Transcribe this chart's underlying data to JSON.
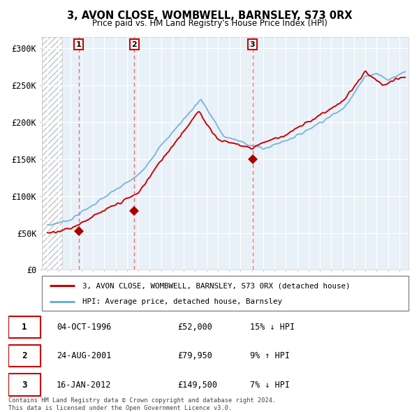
{
  "title": "3, AVON CLOSE, WOMBWELL, BARNSLEY, S73 0RX",
  "subtitle": "Price paid vs. HM Land Registry's House Price Index (HPI)",
  "ylabel_ticks": [
    "£0",
    "£50K",
    "£100K",
    "£150K",
    "£200K",
    "£250K",
    "£300K"
  ],
  "ytick_values": [
    0,
    50000,
    100000,
    150000,
    200000,
    250000,
    300000
  ],
  "ylim": [
    0,
    315000
  ],
  "xlim_start": 1993.5,
  "xlim_end": 2025.8,
  "hpi_color": "#6baed6",
  "price_color": "#cc0000",
  "sale_marker_color": "#aa0000",
  "vline_color": "#e87070",
  "label_border": "#cc0000",
  "sale1_x": 1996.75,
  "sale1_y": 52000,
  "sale2_x": 2001.65,
  "sale2_y": 79950,
  "sale3_x": 2012.05,
  "sale3_y": 149500,
  "legend_line1": "3, AVON CLOSE, WOMBWELL, BARNSLEY, S73 0RX (detached house)",
  "legend_line2": "HPI: Average price, detached house, Barnsley",
  "table_rows": [
    [
      "1",
      "04-OCT-1996",
      "£52,000",
      "15% ↓ HPI"
    ],
    [
      "2",
      "24-AUG-2001",
      "£79,950",
      "9% ↑ HPI"
    ],
    [
      "3",
      "16-JAN-2012",
      "£149,500",
      "7% ↓ HPI"
    ]
  ],
  "footer": "Contains HM Land Registry data © Crown copyright and database right 2024.\nThis data is licensed under the Open Government Licence v3.0.",
  "hatch_region_end": 1995.3,
  "background_color": "#ddeeff",
  "chart_bg": "#e8f0f8"
}
